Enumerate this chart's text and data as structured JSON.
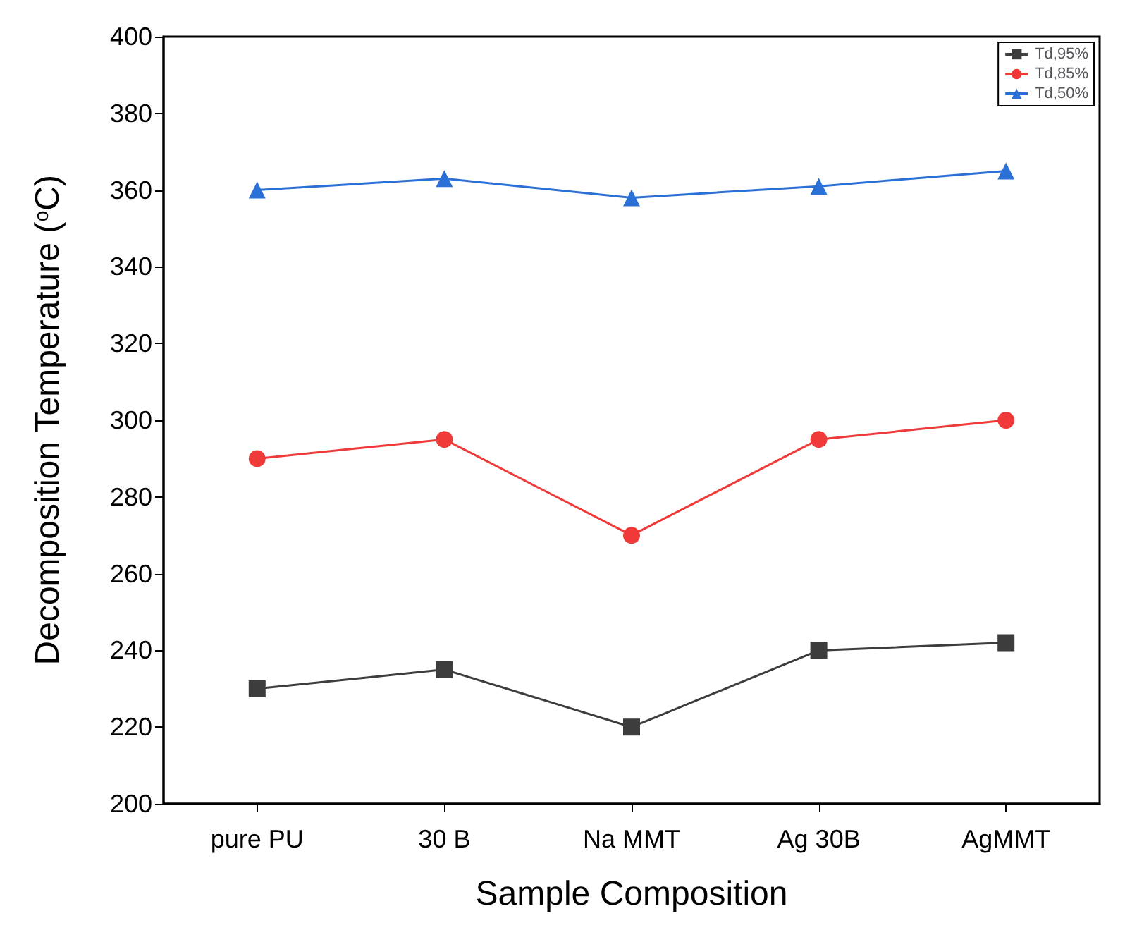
{
  "chart_data": {
    "type": "line",
    "xlabel": "Sample Composition",
    "ylabel": "Decomposition Temperature ($^{o}$C)",
    "categories": [
      "pure PU",
      "30 B",
      "Na MMT",
      "Ag 30B",
      "AgMMT"
    ],
    "series": [
      {
        "name": "Td,95%",
        "color": "#3d3d3d",
        "marker": "square",
        "values": [
          230,
          235,
          220,
          240,
          242
        ]
      },
      {
        "name": "Td,85%",
        "color": "#f03a3a",
        "marker": "circle",
        "values": [
          290,
          295,
          270,
          295,
          300
        ]
      },
      {
        "name": "Td,50%",
        "color": "#2a70d6",
        "marker": "triangle",
        "values": [
          360,
          363,
          358,
          361,
          365
        ]
      }
    ],
    "ylim": [
      200,
      400
    ],
    "yticks": [
      200,
      220,
      240,
      260,
      280,
      300,
      320,
      340,
      360,
      380,
      400
    ],
    "grid": false,
    "legend": "top right",
    "line_style": "solid"
  }
}
